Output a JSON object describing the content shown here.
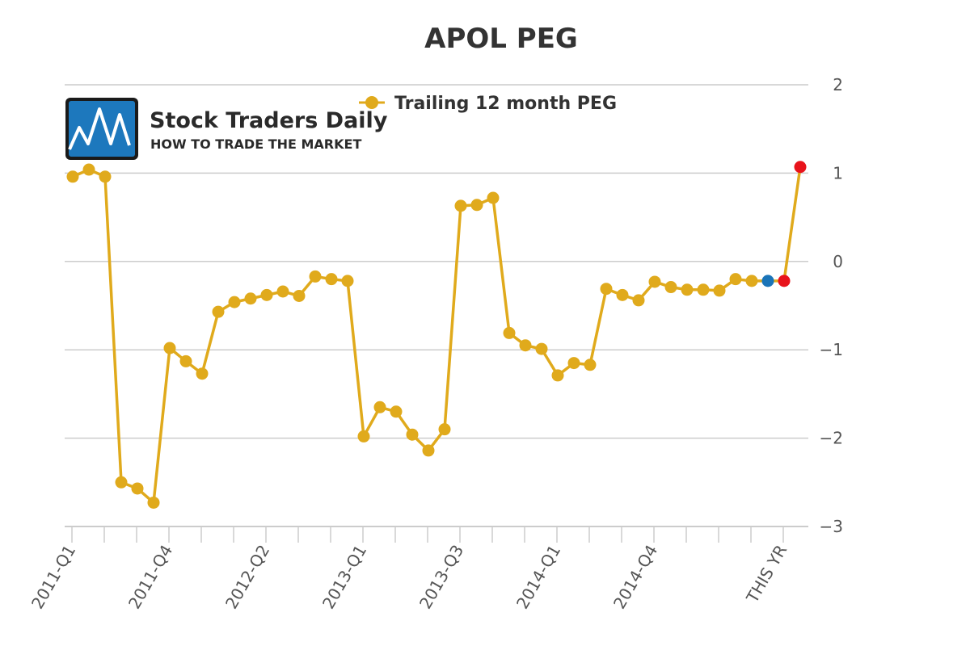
{
  "logo": {
    "name": "Stock Traders Daily",
    "tagline": "HOW TO TRADE THE MARKET"
  },
  "colors": {
    "line": "#e0aa1c",
    "grid": "#cccccc",
    "highlight_blue": "#1a74b8",
    "highlight_red": "#e8131b"
  },
  "chart_data": {
    "type": "line",
    "title": "APOL PEG",
    "xlabel": "",
    "ylabel": "",
    "ylim": [
      -3,
      2
    ],
    "yticks": [
      2,
      1,
      0,
      -1,
      -2,
      -3
    ],
    "ytick_labels": [
      "2",
      "1",
      "0",
      "−1",
      "−2",
      "−3"
    ],
    "grid": true,
    "legend_position": "top",
    "x_labels": [
      {
        "index": 0,
        "label": "2011-Q1"
      },
      {
        "index": 6,
        "label": "2011-Q4"
      },
      {
        "index": 12,
        "label": "2012-Q2"
      },
      {
        "index": 18,
        "label": "2013-Q1"
      },
      {
        "index": 24,
        "label": "2013-Q3"
      },
      {
        "index": 30,
        "label": "2014-Q1"
      },
      {
        "index": 36,
        "label": "2014-Q4"
      },
      {
        "index": 44,
        "label": "THIS YR"
      }
    ],
    "series": [
      {
        "name": "Trailing 12 month PEG",
        "color": "#e0aa1c",
        "values": [
          0.96,
          1.04,
          0.96,
          -2.5,
          -2.57,
          -2.73,
          -0.98,
          -1.13,
          -1.27,
          -0.57,
          -0.46,
          -0.42,
          -0.38,
          -0.34,
          -0.39,
          -0.17,
          -0.2,
          -0.22,
          -1.98,
          -1.65,
          -1.7,
          -1.96,
          -2.14,
          -1.9,
          0.63,
          0.64,
          0.72,
          -0.81,
          -0.95,
          -0.99,
          -1.29,
          -1.15,
          -1.17,
          -0.31,
          -0.38,
          -0.44,
          -0.23,
          -0.29,
          -0.32,
          -0.32,
          -0.33,
          -0.2,
          -0.22,
          -0.22,
          -0.22,
          1.07
        ]
      }
    ],
    "highlighted_points": [
      {
        "index": 43,
        "color": "#1a74b8"
      },
      {
        "index": 44,
        "color": "#e8131b"
      },
      {
        "index": 45,
        "color": "#e8131b"
      }
    ]
  }
}
